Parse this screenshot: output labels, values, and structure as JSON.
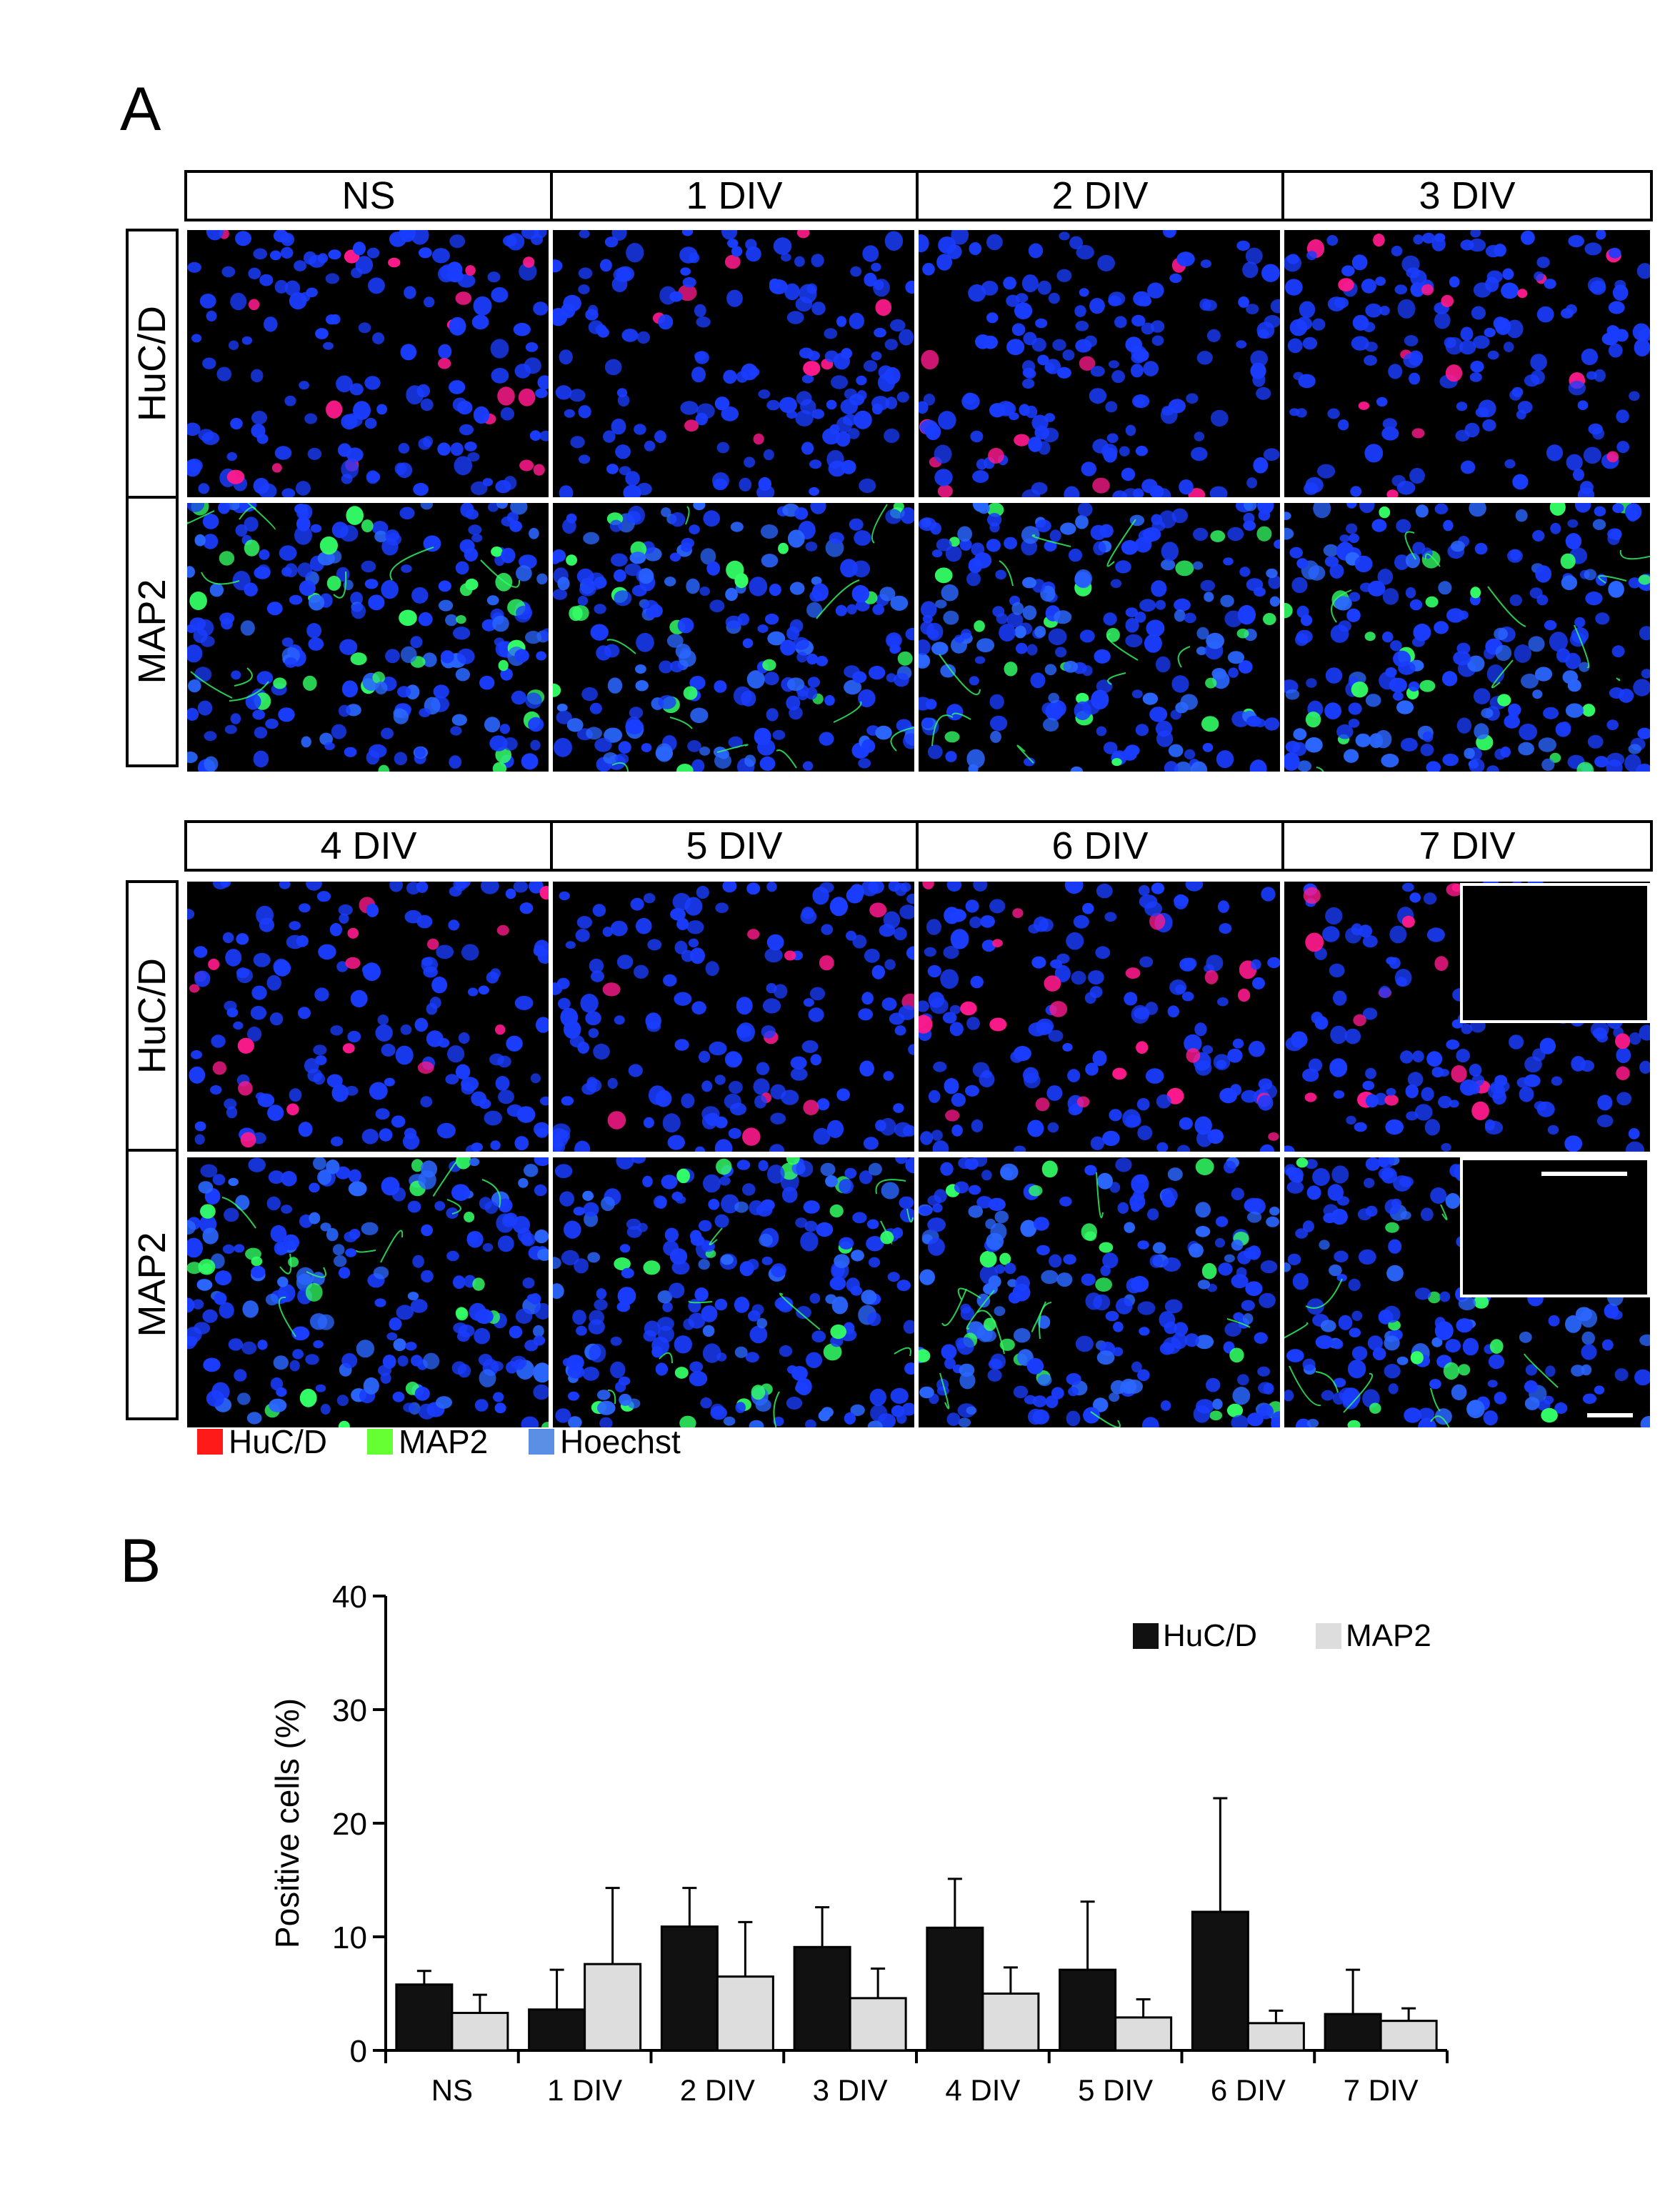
{
  "panel_a": {
    "letter": "A",
    "columns_top": [
      "NS",
      "1 DIV",
      "2 DIV",
      "3 DIV"
    ],
    "columns_bottom": [
      "4 DIV",
      "5 DIV",
      "6 DIV",
      "7 DIV"
    ],
    "rows": [
      "HuC/D",
      "MAP2"
    ],
    "legend": [
      {
        "label": "HuC/D",
        "color": "#ff1a1a"
      },
      {
        "label": "MAP2",
        "color": "#66ff33"
      },
      {
        "label": "Hoechst",
        "color": "#5b8fe6"
      }
    ],
    "colors": {
      "nuclei": "#1a3dff",
      "huc": "#ff1a8c",
      "map2": "#33ff66",
      "background": "#000000"
    }
  },
  "panel_b": {
    "letter": "B"
  },
  "chart_data": {
    "type": "bar",
    "categories": [
      "NS",
      "1 DIV",
      "2 DIV",
      "3 DIV",
      "4 DIV",
      "5 DIV",
      "6 DIV",
      "7 DIV"
    ],
    "series": [
      {
        "name": "HuC/D",
        "color": "#111111",
        "values": [
          5.8,
          3.6,
          10.9,
          9.1,
          10.8,
          7.1,
          12.2,
          3.2
        ],
        "error": [
          1.2,
          3.5,
          3.4,
          3.5,
          4.3,
          6.0,
          10.0,
          3.9
        ]
      },
      {
        "name": "MAP2",
        "color": "#dddddd",
        "values": [
          3.3,
          7.6,
          6.5,
          4.6,
          5.0,
          2.9,
          2.4,
          2.6
        ],
        "error": [
          1.6,
          6.7,
          4.8,
          2.6,
          2.3,
          1.6,
          1.1,
          1.1
        ]
      }
    ],
    "ylabel": "Positive cells (%)",
    "xlabel": "",
    "ylim": [
      0,
      40
    ],
    "yticks": [
      0,
      10,
      20,
      30,
      40
    ],
    "legend_position": "top-right"
  }
}
